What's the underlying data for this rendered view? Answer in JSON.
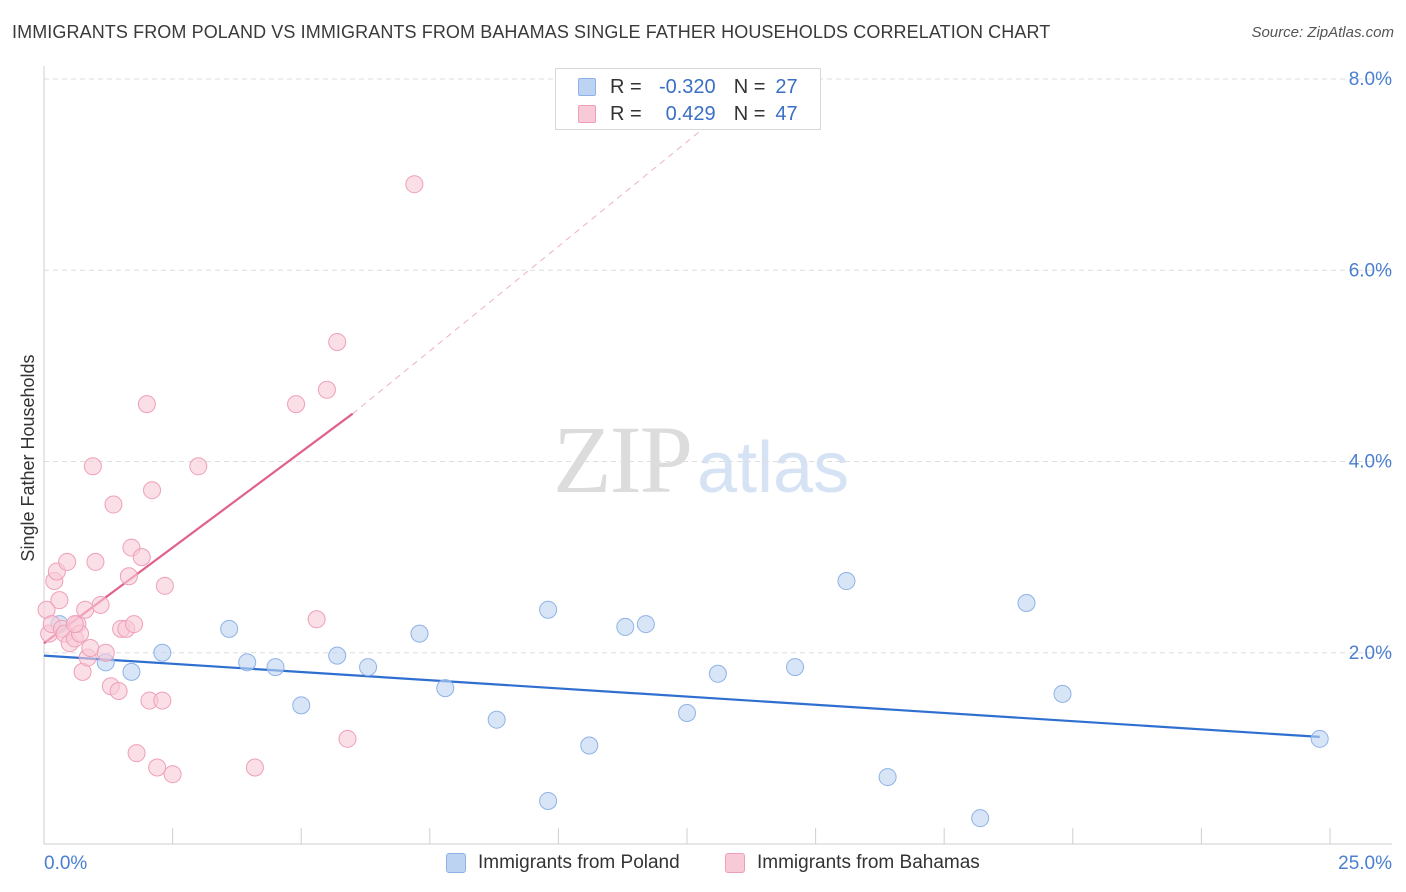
{
  "title": "IMMIGRANTS FROM POLAND VS IMMIGRANTS FROM BAHAMAS SINGLE FATHER HOUSEHOLDS CORRELATION CHART",
  "source": "Source: ZipAtlas.com",
  "watermark": {
    "zip": "ZIP",
    "atlas": "atlas"
  },
  "legend": {
    "rows": [
      {
        "r_label": "R =",
        "r_value": "-0.320",
        "n_label": "N =",
        "n_value": "27"
      },
      {
        "r_label": "R =",
        "r_value": "0.429",
        "n_label": "N =",
        "n_value": "47"
      }
    ]
  },
  "bottom_legend": {
    "poland": "Immigrants from Poland",
    "bahamas": "Immigrants from Bahamas"
  },
  "colors": {
    "poland_fill": "#bcd3f2",
    "poland_stroke": "#8fb2e6",
    "poland_line": "#2f6fd0",
    "bahamas_fill": "#f8c9d7",
    "bahamas_stroke": "#ef9fb8",
    "bahamas_line": "#e0628a",
    "tick_text": "#4a7fd0",
    "grid": "#dedede"
  },
  "chart_data": {
    "type": "scatter",
    "title": "IMMIGRANTS FROM POLAND VS IMMIGRANTS FROM BAHAMAS SINGLE FATHER HOUSEHOLDS CORRELATION CHART",
    "xlabel": "",
    "ylabel": "Single Father Households",
    "xlim": [
      0,
      25
    ],
    "ylim": [
      0,
      8.2
    ],
    "x_tick_labels": [
      "0.0%",
      "25.0%"
    ],
    "y_ticks": [
      2,
      4,
      6,
      8
    ],
    "y_tick_labels": [
      "2.0%",
      "4.0%",
      "6.0%",
      "8.0%"
    ],
    "grid": true,
    "legend_position": "top-center",
    "series": [
      {
        "name": "Immigrants from Poland",
        "points": [
          [
            0.3,
            2.3
          ],
          [
            1.2,
            1.9
          ],
          [
            1.7,
            1.8
          ],
          [
            2.3,
            2.0
          ],
          [
            3.6,
            2.25
          ],
          [
            3.95,
            1.9
          ],
          [
            4.5,
            1.85
          ],
          [
            5.0,
            1.45
          ],
          [
            5.7,
            1.97
          ],
          [
            6.3,
            1.85
          ],
          [
            7.3,
            2.2
          ],
          [
            7.8,
            1.63
          ],
          [
            8.8,
            1.3
          ],
          [
            9.8,
            0.45
          ],
          [
            9.8,
            2.45
          ],
          [
            10.6,
            1.03
          ],
          [
            11.3,
            2.27
          ],
          [
            11.7,
            2.3
          ],
          [
            12.5,
            1.37
          ],
          [
            13.1,
            1.78
          ],
          [
            14.6,
            1.85
          ],
          [
            15.6,
            2.75
          ],
          [
            16.4,
            0.7
          ],
          [
            18.2,
            0.27
          ],
          [
            19.1,
            2.52
          ],
          [
            19.8,
            1.57
          ],
          [
            24.8,
            1.1
          ]
        ],
        "trend": {
          "x": [
            0,
            24.8
          ],
          "y": [
            1.97,
            1.12
          ]
        }
      },
      {
        "name": "Immigrants from Bahamas",
        "points": [
          [
            0.05,
            2.45
          ],
          [
            0.1,
            2.2
          ],
          [
            0.15,
            2.3
          ],
          [
            0.2,
            2.75
          ],
          [
            0.25,
            2.85
          ],
          [
            0.3,
            2.55
          ],
          [
            0.35,
            2.25
          ],
          [
            0.4,
            2.2
          ],
          [
            0.45,
            2.95
          ],
          [
            0.5,
            2.1
          ],
          [
            0.6,
            2.15
          ],
          [
            0.65,
            2.3
          ],
          [
            0.7,
            2.2
          ],
          [
            0.75,
            1.8
          ],
          [
            0.8,
            2.45
          ],
          [
            0.85,
            1.95
          ],
          [
            0.9,
            2.05
          ],
          [
            0.95,
            3.95
          ],
          [
            1.0,
            2.95
          ],
          [
            1.1,
            2.5
          ],
          [
            1.2,
            2.0
          ],
          [
            1.3,
            1.65
          ],
          [
            1.35,
            3.55
          ],
          [
            1.45,
            1.6
          ],
          [
            1.5,
            2.25
          ],
          [
            1.6,
            2.25
          ],
          [
            1.65,
            2.8
          ],
          [
            1.7,
            3.1
          ],
          [
            1.75,
            2.3
          ],
          [
            1.8,
            0.95
          ],
          [
            1.9,
            3.0
          ],
          [
            2.0,
            4.6
          ],
          [
            2.05,
            1.5
          ],
          [
            2.1,
            3.7
          ],
          [
            2.2,
            0.8
          ],
          [
            2.3,
            1.5
          ],
          [
            2.35,
            2.7
          ],
          [
            2.5,
            0.73
          ],
          [
            3.0,
            3.95
          ],
          [
            4.1,
            0.8
          ],
          [
            4.9,
            4.6
          ],
          [
            5.3,
            2.35
          ],
          [
            5.5,
            4.75
          ],
          [
            5.7,
            5.25
          ],
          [
            5.9,
            1.1
          ],
          [
            7.2,
            6.9
          ],
          [
            0.6,
            2.3
          ]
        ],
        "trend": {
          "x": [
            0,
            6.0
          ],
          "y": [
            2.1,
            4.5
          ]
        },
        "trend_extension": {
          "x": [
            6.0,
            14.0
          ],
          "y": [
            4.5,
            8.0
          ]
        }
      }
    ]
  }
}
